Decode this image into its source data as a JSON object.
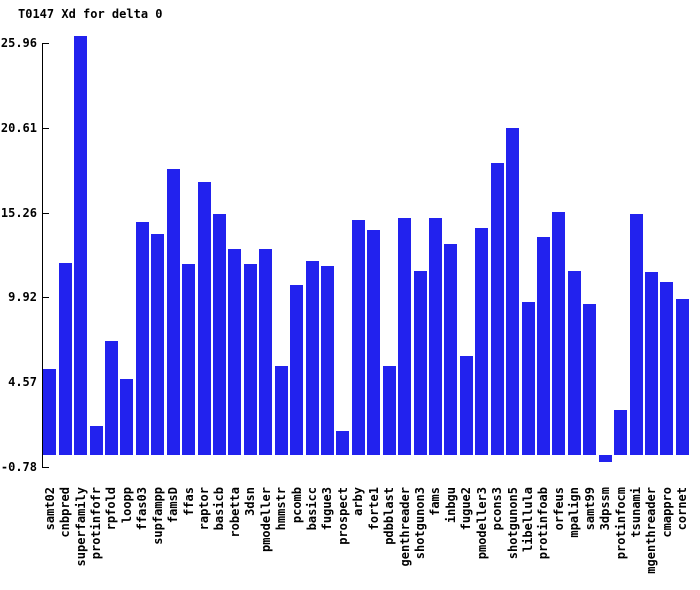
{
  "chart_data": {
    "type": "bar",
    "title": "T0147 Xd for delta 0",
    "xlabel": "",
    "ylabel": "",
    "ylim": [
      -0.78,
      25.96
    ],
    "yticks": [
      25.96,
      20.61,
      15.26,
      9.92,
      4.57,
      -0.78
    ],
    "ytick_labels": [
      "25.96",
      "20.61",
      "15.26",
      "9.92",
      "4.57",
      "-0.78"
    ],
    "grid": false,
    "legend": false,
    "bar_color": "#2222ee",
    "axis_color": "#000000",
    "background_color": "#ffffff",
    "categories": [
      "samt02",
      "cnbpred",
      "superfamily",
      "protinfofr",
      "rpfold",
      "loopp",
      "ffas03",
      "supfampp",
      "famsD",
      "ffas",
      "raptor",
      "basicb",
      "robetta",
      "3dsn",
      "pmodeller",
      "hmmstr",
      "pcomb",
      "basicc",
      "fugue3",
      "prospect",
      "arby",
      "forte1",
      "pdbblast",
      "genthreader",
      "shotgunon3",
      "fams",
      "inbgu",
      "fugue2",
      "pmodeller3",
      "pcons3",
      "shotgunon5",
      "libellula",
      "protinfoab",
      "orfeus",
      "mpalign",
      "samt99",
      "3dpssm",
      "protinfocm",
      "tsunami",
      "mgenthreader",
      "cmappro",
      "cornet"
    ],
    "values": [
      5.4,
      12.1,
      26.4,
      1.8,
      7.2,
      4.8,
      14.7,
      13.9,
      18.0,
      12.0,
      17.2,
      15.2,
      13.0,
      12.0,
      13.0,
      5.6,
      10.7,
      12.2,
      11.9,
      1.5,
      14.8,
      14.2,
      5.6,
      14.9,
      11.6,
      14.9,
      13.3,
      6.2,
      14.3,
      18.4,
      20.6,
      9.6,
      13.7,
      15.3,
      11.6,
      9.5,
      -0.5,
      2.8,
      15.2,
      11.5,
      10.9,
      9.8
    ]
  }
}
